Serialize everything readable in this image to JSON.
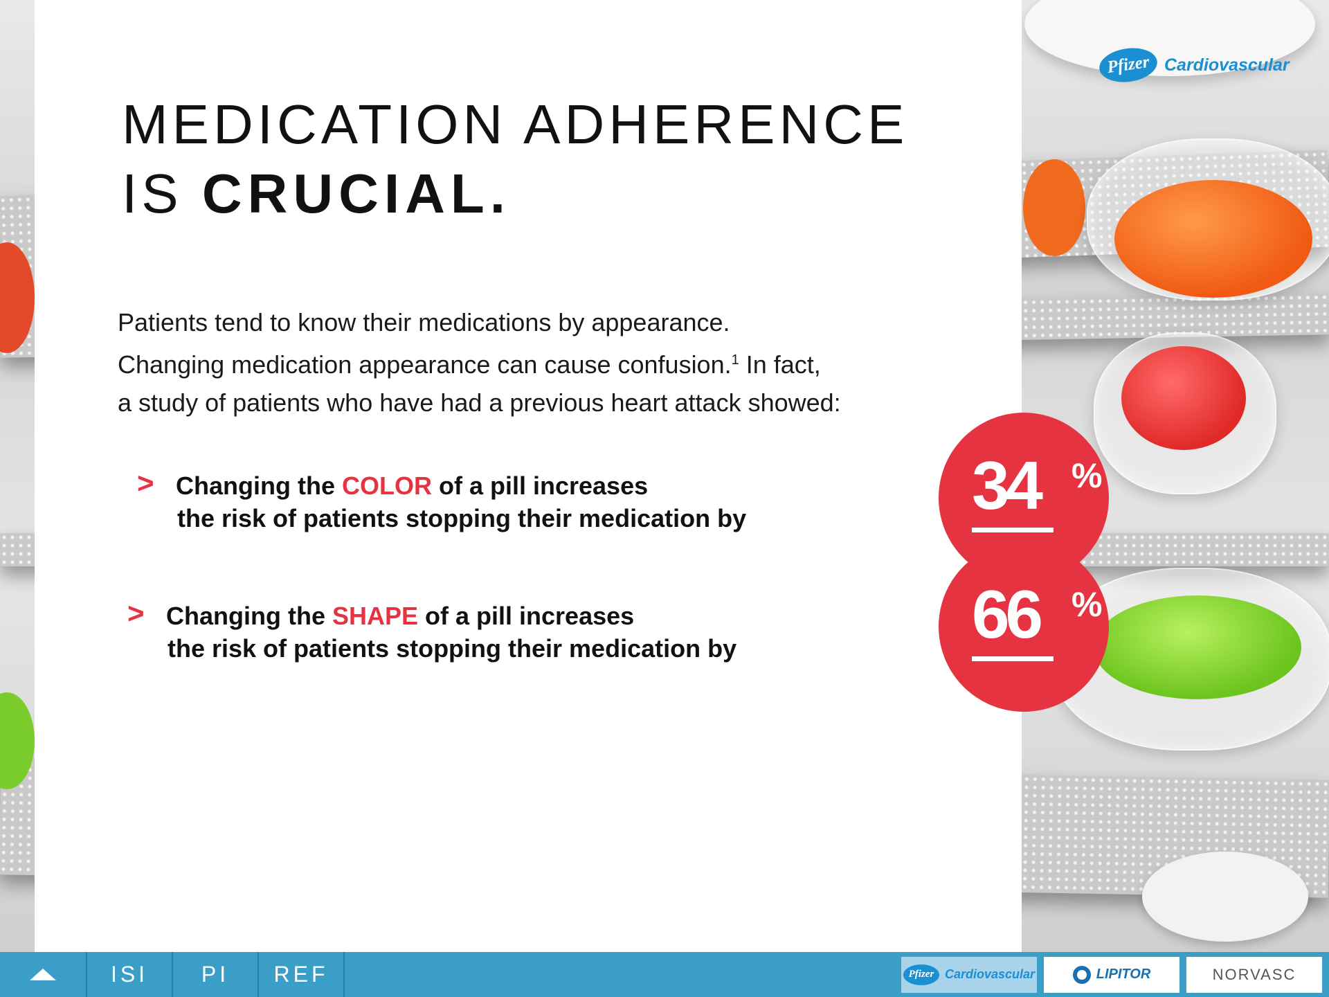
{
  "brand": {
    "logo_text": "Pfizer",
    "name": "Cardiovascular"
  },
  "headline": {
    "line1": "MEDICATION ADHERENCE",
    "line2_prefix": "IS ",
    "line2_bold": "CRUCIAL."
  },
  "intro": {
    "line1": "Patients tend to know their medications by appearance.",
    "line2a": "Changing medication appearance can cause confusion.",
    "line2_sup": "1",
    "line2b": " In fact,",
    "line3": "a study of patients who have had a previous heart attack showed:"
  },
  "bullets": [
    {
      "arrow": ">",
      "prefix": "Changing the ",
      "highlight": "COLOR",
      "suffix": " of a pill increases",
      "line2": "the risk of patients stopping their medication by"
    },
    {
      "arrow": ">",
      "prefix": "Changing the ",
      "highlight": "SHAPE",
      "suffix": " of a pill increases",
      "line2": "the risk of patients stopping their medication by"
    }
  ],
  "stats": [
    {
      "value": "34",
      "unit": "%"
    },
    {
      "value": "66",
      "unit": "%"
    }
  ],
  "colors": {
    "accent": "#e63342",
    "nav": "#3a9ec6",
    "brand_blue": "#1a8fd1"
  },
  "nav": {
    "up_icon": "arrow-up-icon",
    "items": [
      {
        "label": "ISI"
      },
      {
        "label": "PI"
      },
      {
        "label": "REF"
      }
    ]
  },
  "footer_logos": [
    {
      "mark": "Pfizer",
      "text": "Cardiovascular"
    },
    {
      "text": "LIPITOR"
    },
    {
      "text": "NORVASC"
    }
  ]
}
